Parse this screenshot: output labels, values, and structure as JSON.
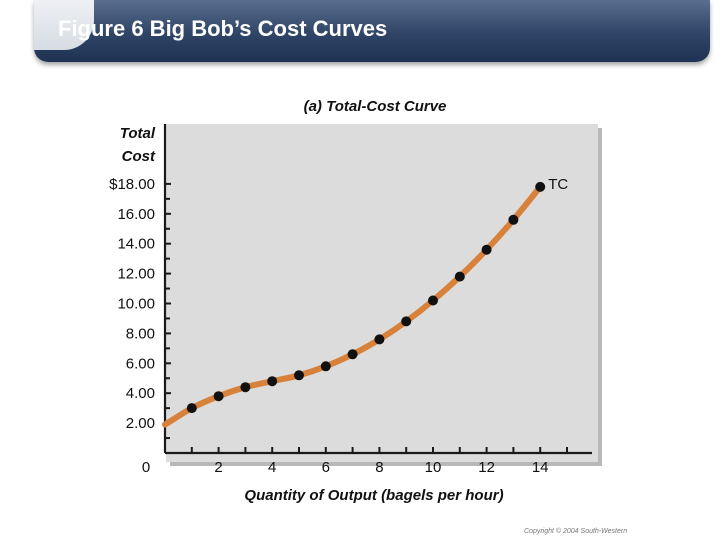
{
  "header": {
    "title": "Figure 6 Big Bob’s Cost Curves"
  },
  "footer": {
    "copyright": "Copyright © 2004  South-Western"
  },
  "colors": {
    "curve": "#d8813a",
    "point": "#111111",
    "axis": "#1a1a1a",
    "panel": "#d9d9d9",
    "header": "#2f4466"
  },
  "chart_data": {
    "type": "line",
    "panel_title": "(a) Total-Cost Curve",
    "ylabel_line1": "Total",
    "ylabel_line2": "Cost",
    "xlabel": "Quantity of Output (bagels per hour)",
    "series_label": "TC",
    "origin_label": "0",
    "xlim": [
      0,
      15
    ],
    "ylim": [
      0,
      19
    ],
    "x_ticks": [
      {
        "value": 2,
        "label": "2"
      },
      {
        "value": 4,
        "label": "4"
      },
      {
        "value": 6,
        "label": "6"
      },
      {
        "value": 8,
        "label": "8"
      },
      {
        "value": 10,
        "label": "10"
      },
      {
        "value": 12,
        "label": "12"
      },
      {
        "value": 14,
        "label": "14"
      }
    ],
    "y_ticks": [
      {
        "value": 2,
        "label": "2.00"
      },
      {
        "value": 4,
        "label": "4.00"
      },
      {
        "value": 6,
        "label": "6.00"
      },
      {
        "value": 8,
        "label": "8.00"
      },
      {
        "value": 10,
        "label": "10.00"
      },
      {
        "value": 12,
        "label": "12.00"
      },
      {
        "value": 14,
        "label": "14.00"
      },
      {
        "value": 16,
        "label": "16.00"
      },
      {
        "value": 18,
        "label": "$18.00"
      }
    ],
    "series": [
      {
        "x": [
          1,
          2,
          3,
          4,
          5,
          6,
          7,
          8,
          9,
          10,
          11,
          12,
          13,
          14
        ],
        "y": [
          3.0,
          3.8,
          4.4,
          4.8,
          5.2,
          5.8,
          6.6,
          7.6,
          8.8,
          10.2,
          11.8,
          13.6,
          15.6,
          17.8
        ]
      }
    ],
    "grid": false
  }
}
